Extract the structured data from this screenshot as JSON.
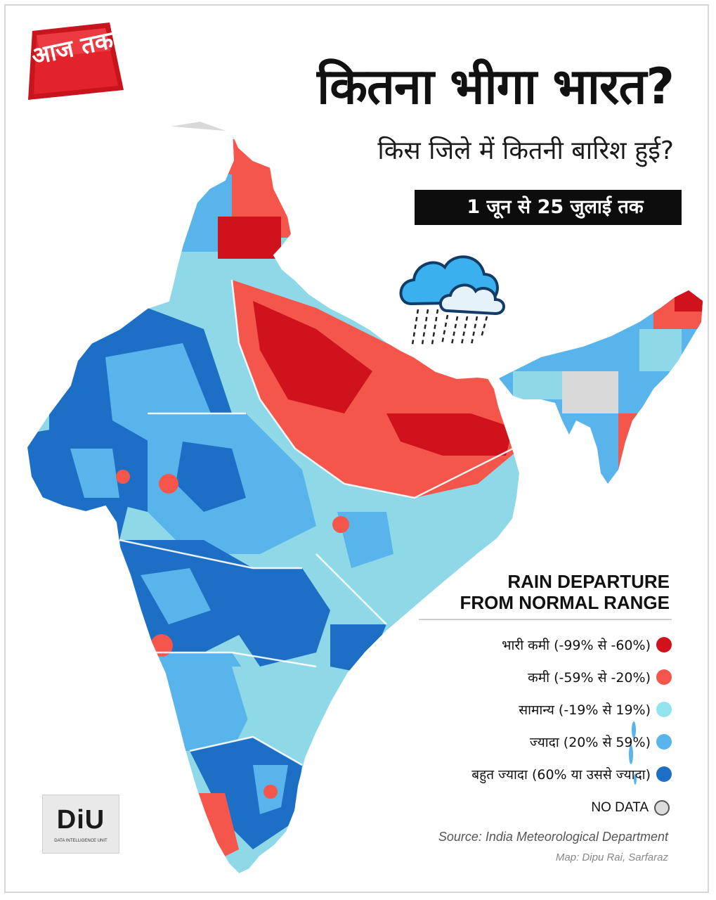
{
  "branding": {
    "logo_text": "आज तक",
    "diu_text": "DiU",
    "diu_subtext": "DATA INTELLIGENCE UNIT"
  },
  "header": {
    "title": "कितना भीगा भारत?",
    "subtitle": "किस जिले में कितनी बारिश हुई?",
    "date_range": "1 जून से 25 जुलाई तक"
  },
  "legend": {
    "title_line1": "RAIN DEPARTURE",
    "title_line2": "FROM NORMAL RANGE",
    "items": [
      {
        "label": "भारी कमी (-99% से -60%)",
        "color": "#d0121d"
      },
      {
        "label": "कमी  (-59% से -20%)",
        "color": "#f5564c"
      },
      {
        "label": "सामान्य  (-19% से 19%)",
        "color": "#92e3ec"
      },
      {
        "label": "ज्यादा  (20% से 59%)",
        "color": "#5ab4ec"
      },
      {
        "label": "बहुत ज्यादा  (60% या उससे ज्यादा)",
        "color": "#1d6fc6"
      }
    ],
    "no_data_label": "NO DATA",
    "no_data_color": "#dcdcdc"
  },
  "footer": {
    "source": "Source: India Meteorological Department",
    "credit": "Map: Dipu Rai, Sarfaraz"
  },
  "icons": [
    "rain-cloud-icon",
    "aaj-tak-logo",
    "diu-logo"
  ]
}
